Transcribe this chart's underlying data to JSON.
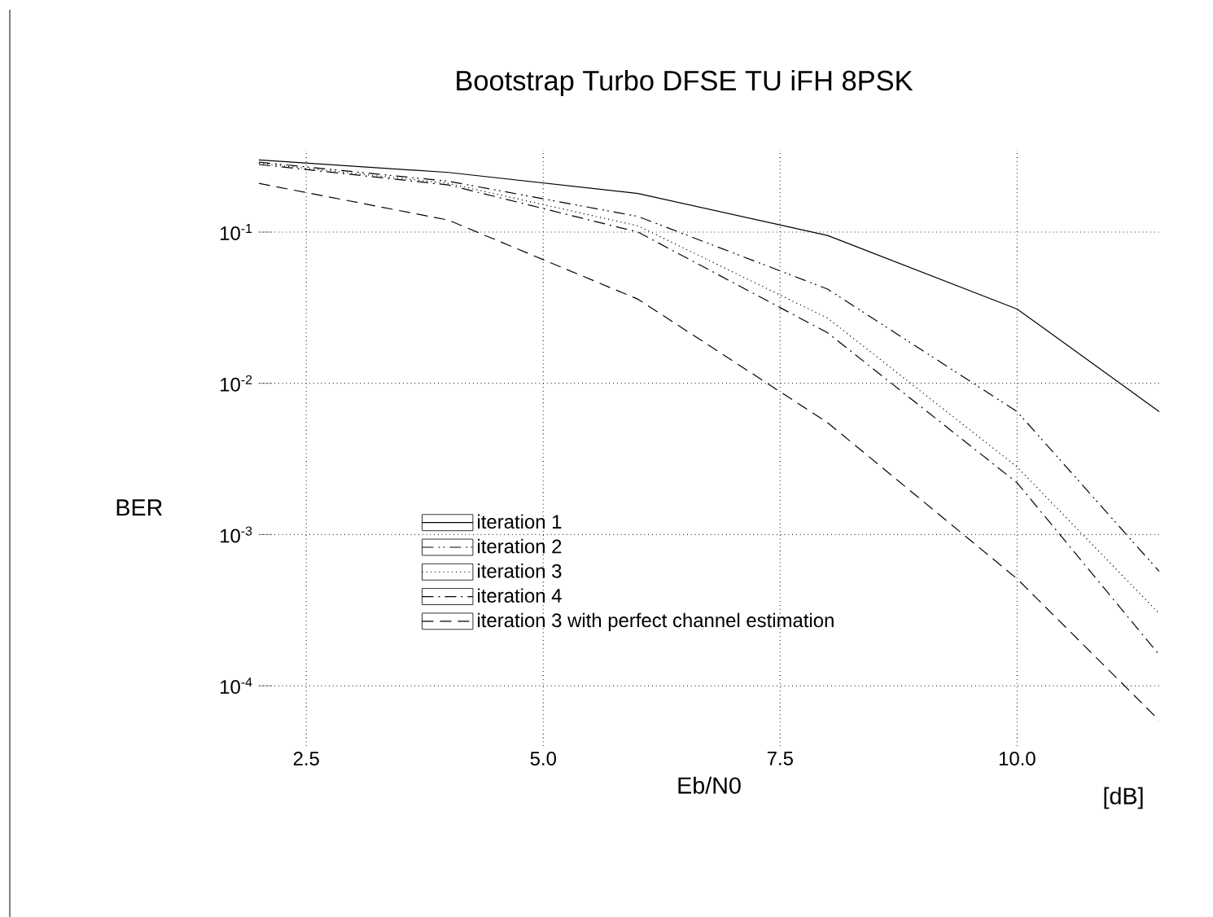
{
  "chart_data": {
    "type": "line",
    "title": "Bootstrap Turbo DFSE TU iFH 8PSK",
    "xlabel": "Eb/N0",
    "ylabel": "BER",
    "annotations": [
      "[dB]"
    ],
    "x": [
      2,
      4,
      6,
      8,
      10,
      11.5
    ],
    "series": [
      {
        "name": "iteration 1",
        "color": "#000000",
        "line_style": "solid",
        "values": [
          0.3,
          0.248,
          0.18,
          0.095,
          0.031,
          0.0065
        ]
      },
      {
        "name": "iteration 2",
        "color": "#000000",
        "line_style": "dashdotdotted",
        "values": [
          0.29,
          0.217,
          0.127,
          0.042,
          0.0065,
          0.00057
        ]
      },
      {
        "name": "iteration 3",
        "color": "#000000",
        "line_style": "dotted",
        "values": [
          0.285,
          0.21,
          0.11,
          0.027,
          0.0028,
          0.0003
        ]
      },
      {
        "name": "iteration 4",
        "color": "#000000",
        "line_style": "dashdotted",
        "values": [
          0.28,
          0.205,
          0.1,
          0.0216,
          0.0022,
          0.00016
        ]
      },
      {
        "name": "iteration 3 with perfect channel estimation",
        "color": "#000000",
        "line_style": "dashed",
        "values": [
          0.21,
          0.12,
          0.036,
          0.0055,
          0.00051,
          5.9e-05
        ]
      }
    ],
    "log": "y",
    "grid": true,
    "legend": "bottom left",
    "xlim": [
      2,
      11.5
    ],
    "ylim": [
      4e-05,
      0.35
    ],
    "xticks": [
      {
        "value": 2.5,
        "label": "2.5"
      },
      {
        "value": 5,
        "label": "5.0"
      },
      {
        "value": 7.5,
        "label": "7.5"
      },
      {
        "value": 10,
        "label": "10.0"
      }
    ],
    "yticks": [
      {
        "value": 0.1,
        "label": "10$^{-1}$"
      },
      {
        "value": 0.01,
        "label": "10$^{-2}$"
      },
      {
        "value": 0.001,
        "label": "10$^{-3}$"
      },
      {
        "value": 0.0001,
        "label": "10$^{-4}$"
      }
    ]
  }
}
